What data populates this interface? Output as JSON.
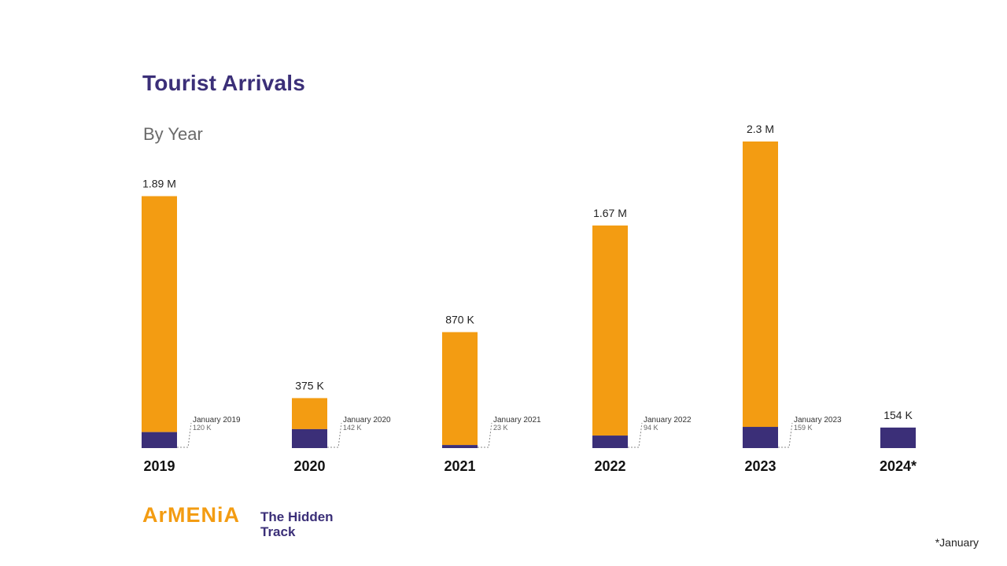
{
  "colors": {
    "annual": "#f39c12",
    "january": "#3b2f78",
    "title": "#3b2f78"
  },
  "chart_data": {
    "type": "bar",
    "title": "Tourist Arrivals",
    "subtitle": "By Year",
    "ylim": [
      0,
      2.3
    ],
    "unit": "million",
    "grid": false,
    "items": [
      {
        "year": "2019",
        "total": 1.89,
        "total_label": "1.89 M",
        "january": 0.12,
        "january_label": "January 2019",
        "january_value_label": "120 K"
      },
      {
        "year": "2020",
        "total": 0.375,
        "total_label": "375 K",
        "january": 0.142,
        "january_label": "January 2020",
        "january_value_label": "142 K"
      },
      {
        "year": "2021",
        "total": 0.87,
        "total_label": "870 K",
        "january": 0.023,
        "january_label": "January 2021",
        "january_value_label": "23 K"
      },
      {
        "year": "2022",
        "total": 1.67,
        "total_label": "1.67 M",
        "january": 0.094,
        "january_label": "January 2022",
        "january_value_label": "94 K"
      },
      {
        "year": "2023",
        "total": 2.3,
        "total_label": "2.3 M",
        "january": 0.159,
        "january_label": "January 2023",
        "january_value_label": "159 K"
      },
      {
        "year": "2024*",
        "total": 0.154,
        "total_label": "154 K",
        "january": 0.154,
        "january_label": "",
        "january_value_label": ""
      }
    ]
  },
  "logo": {
    "brand": "ArMENiA",
    "tagline": "The Hidden Track"
  },
  "footnote": "*January"
}
